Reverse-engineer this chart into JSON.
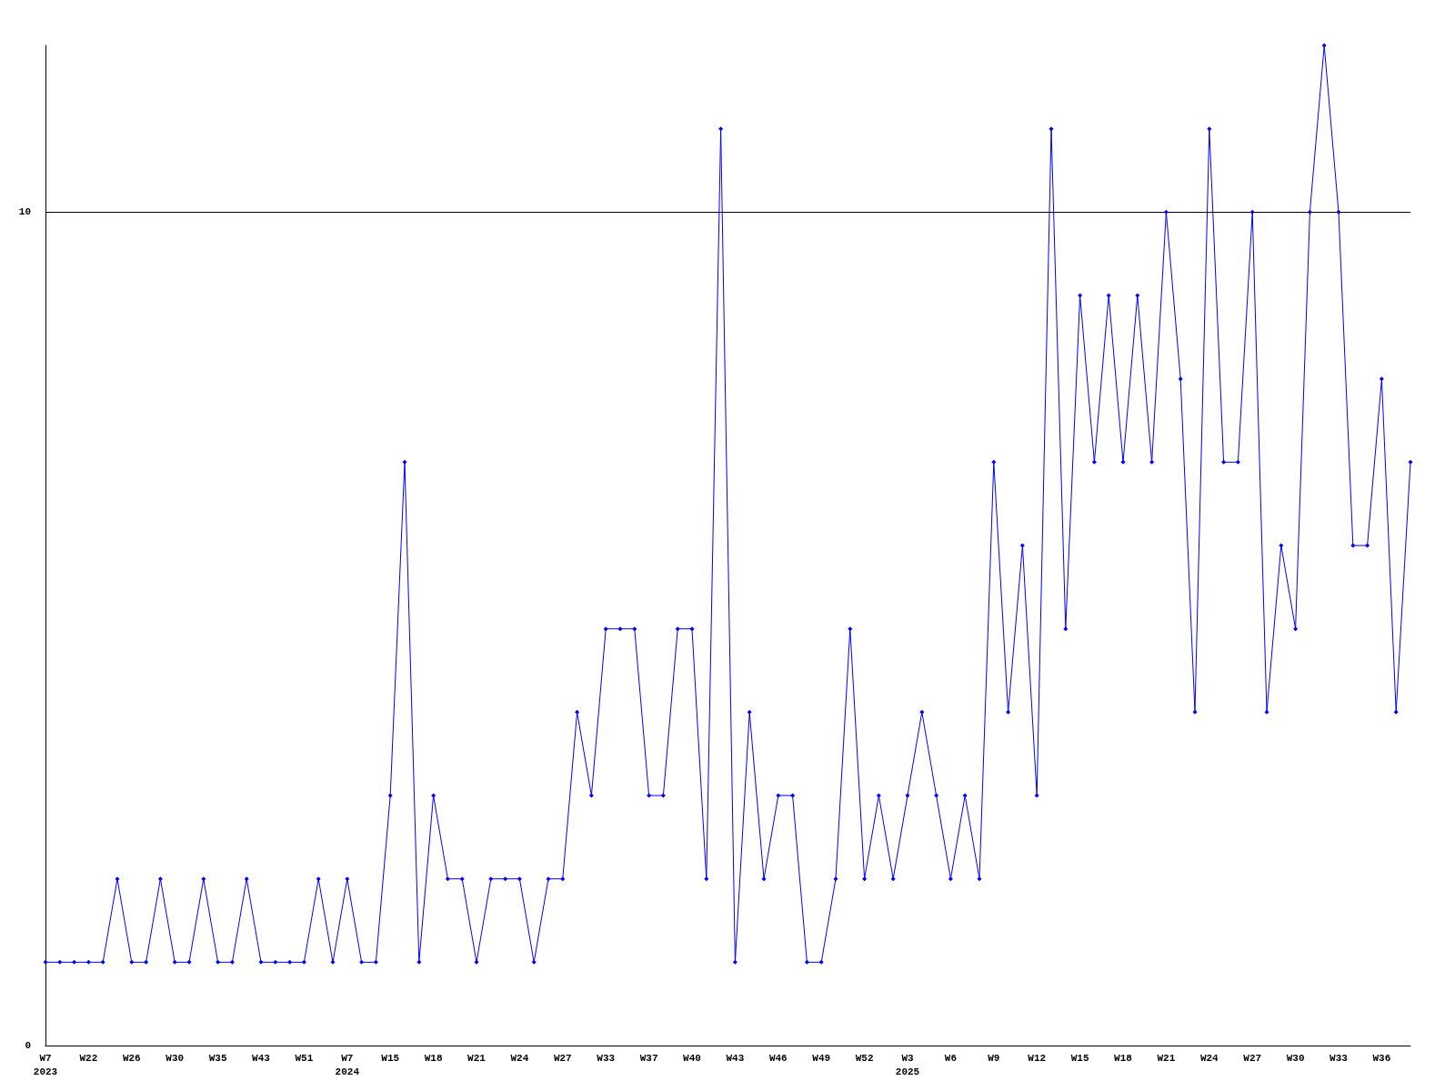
{
  "chart_data": {
    "type": "line",
    "categories": [
      "W7\n2023",
      null,
      null,
      "W22",
      null,
      null,
      "W26",
      null,
      null,
      "W30",
      null,
      null,
      "W35",
      null,
      null,
      "W43",
      null,
      null,
      "W51",
      null,
      null,
      "W7\n2024",
      null,
      null,
      "W15",
      null,
      null,
      "W18",
      null,
      null,
      "W21",
      null,
      null,
      "W24",
      null,
      null,
      "W27",
      null,
      null,
      "W33",
      null,
      null,
      "W37",
      null,
      null,
      "W40",
      null,
      null,
      "W43",
      null,
      null,
      "W46",
      null,
      null,
      "W49",
      null,
      null,
      "W52",
      null,
      null,
      "W3\n2025",
      null,
      null,
      "W6",
      null,
      null,
      "W9",
      null,
      null,
      "W12",
      null,
      null,
      "W15",
      null,
      null,
      "W18",
      null,
      null,
      "W21",
      null,
      null,
      "W24",
      null,
      null,
      "W27",
      null,
      null,
      "W30",
      null,
      null,
      "W33",
      null,
      null,
      "W36",
      null,
      null
    ],
    "series": [
      {
        "color": "#0000ff",
        "values": [
          1,
          1,
          1,
          1,
          1,
          2,
          1,
          1,
          2,
          1,
          1,
          2,
          1,
          1,
          2,
          1,
          1,
          1,
          1,
          2,
          1,
          2,
          1,
          1,
          3,
          7,
          1,
          3,
          2,
          2,
          1,
          2,
          2,
          2,
          1,
          2,
          2,
          4,
          3,
          5,
          5,
          5,
          3,
          3,
          5,
          5,
          2,
          11,
          1,
          4,
          2,
          3,
          3,
          1,
          1,
          2,
          5,
          2,
          3,
          2,
          3,
          4,
          3,
          2,
          3,
          2,
          7,
          4,
          6,
          3,
          11,
          5,
          9,
          7,
          9,
          7,
          9,
          7,
          10,
          8,
          4,
          11,
          7,
          7,
          10,
          4,
          6,
          5,
          10,
          12,
          10,
          6,
          6,
          8,
          4,
          7
        ]
      }
    ],
    "ylim": [
      0,
      12
    ],
    "yticks": [
      0,
      10
    ],
    "grid": "y",
    "marker": "diamond",
    "line_style": "solid"
  }
}
